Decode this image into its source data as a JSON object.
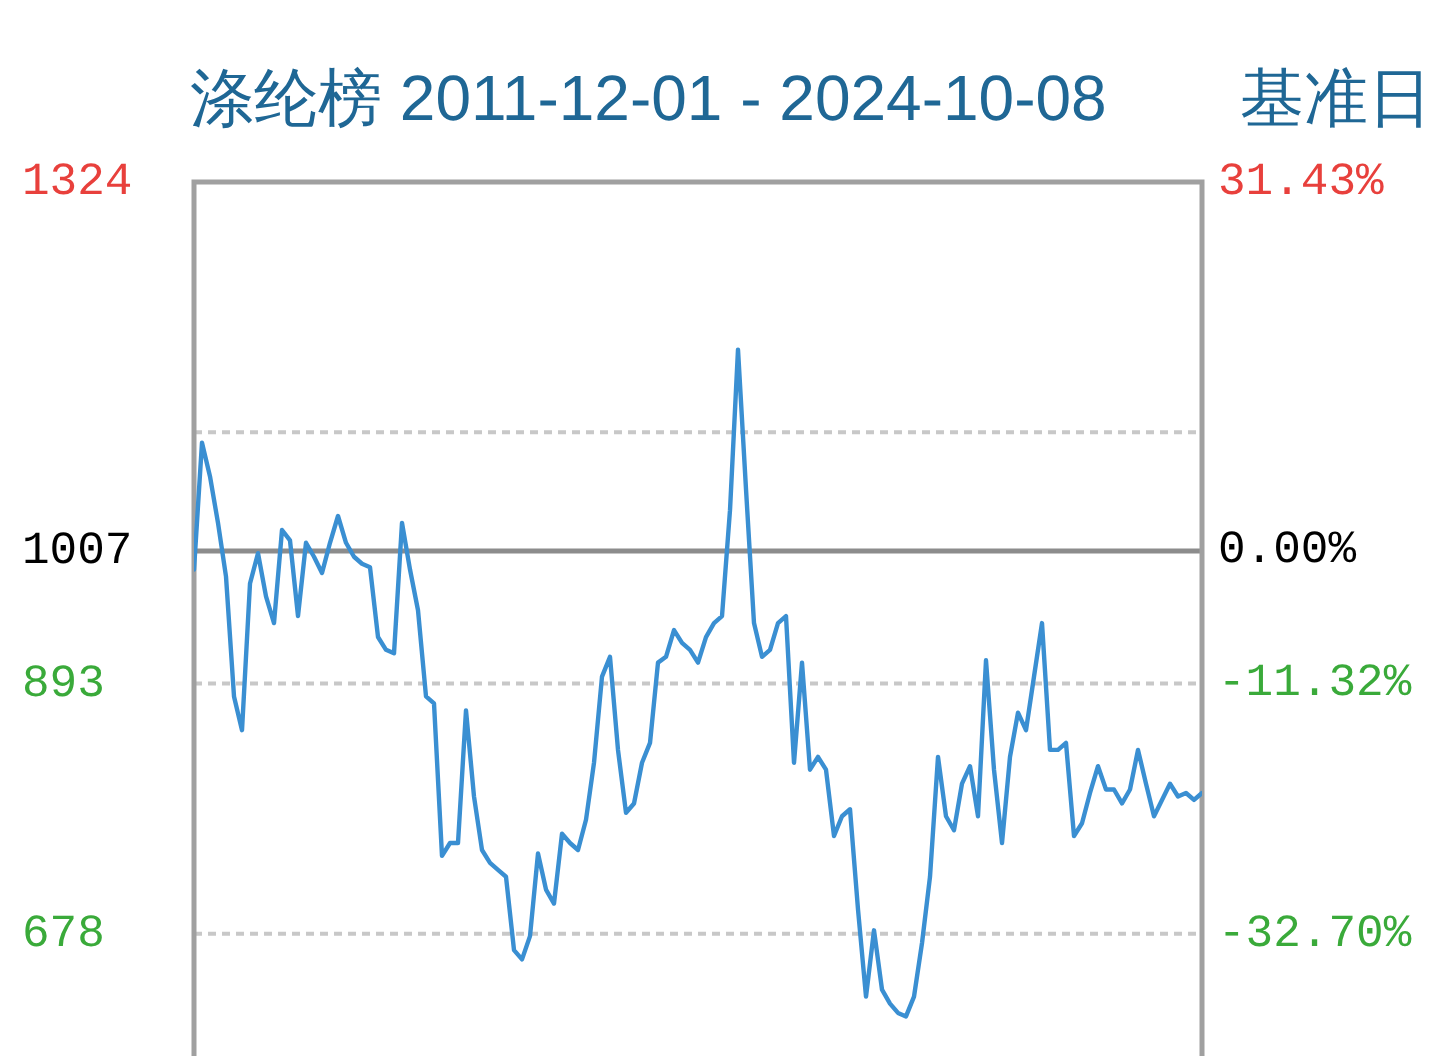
{
  "chart_data": {
    "type": "line",
    "title": "涤纶榜 2011-12-01 - 2024-10-08",
    "annotations": [
      "基准日"
    ],
    "categories": [
      null,
      null,
      null,
      null,
      null,
      null,
      null,
      null,
      null,
      null,
      null,
      null,
      null,
      null,
      null,
      null,
      null,
      null,
      null,
      null,
      null,
      null,
      null,
      null,
      null,
      null,
      null,
      null,
      null,
      null,
      null,
      null,
      null,
      null,
      null,
      null,
      null,
      null,
      null,
      null,
      null,
      null,
      null,
      null,
      null,
      null,
      null,
      null,
      null,
      null,
      null,
      null,
      null,
      null,
      null,
      null,
      null,
      null,
      null,
      null,
      null,
      null,
      null,
      null,
      null,
      null,
      null,
      null,
      null,
      null,
      null,
      null,
      null,
      null,
      null,
      null,
      null,
      null,
      null,
      null,
      null,
      null,
      null,
      null,
      null,
      null,
      null,
      null,
      null,
      null,
      null,
      null,
      null,
      null,
      null,
      null,
      null,
      null,
      null,
      null,
      null,
      null,
      null,
      null,
      null,
      null,
      null,
      null,
      null,
      null,
      null,
      null,
      null,
      null,
      null,
      null,
      null,
      null,
      null,
      null,
      null,
      null,
      null,
      null,
      null,
      null,
      null
    ],
    "color": "#3a8fd2",
    "values": [
      991,
      1100,
      1071,
      1031,
      985,
      882,
      853,
      979,
      1005,
      968,
      945,
      1025,
      1016,
      951,
      1014,
      1002,
      988,
      1014,
      1037,
      1014,
      1002,
      996,
      993,
      933,
      922,
      919,
      1031,
      991,
      956,
      882,
      876,
      745,
      756,
      756,
      870,
      796,
      750,
      739,
      733,
      727,
      664,
      656,
      676,
      747,
      716,
      704,
      764,
      756,
      750,
      776,
      825,
      899,
      916,
      836,
      782,
      790,
      825,
      842,
      911,
      916,
      939,
      928,
      922,
      911,
      933,
      945,
      951,
      1042,
      1180,
      1060,
      945,
      916,
      922,
      945,
      951,
      825,
      911,
      819,
      830,
      819,
      762,
      779,
      785,
      699,
      624,
      681,
      630,
      618,
      610,
      607,
      624,
      670,
      727,
      830,
      779,
      767,
      807,
      822,
      779,
      913,
      819,
      756,
      830,
      868,
      853,
      899,
      945,
      836,
      836,
      842,
      762,
      773,
      799,
      822,
      802,
      802,
      790,
      802,
      836,
      807,
      779,
      793,
      807,
      796,
      799,
      793,
      799
    ],
    "ylim": [
      573,
      1324
    ],
    "yticks": [
      1324,
      {
        "value": 1109,
        "label": null
      },
      1007,
      893,
      678
    ],
    "y2lim": [
      -43.12,
      31.43
    ],
    "y2ticks": [
      {
        "value": 31.43,
        "label": "31.43%"
      },
      {
        "value": 0,
        "label": "0.00%"
      },
      {
        "value": -11.32,
        "label": "-11.32%"
      },
      {
        "value": -32.7,
        "label": "-32.70%"
      }
    ],
    "ref_lines": [
      {
        "axis": "y",
        "value": 1007,
        "color": "#8c8c8c"
      }
    ],
    "grid": "y"
  }
}
